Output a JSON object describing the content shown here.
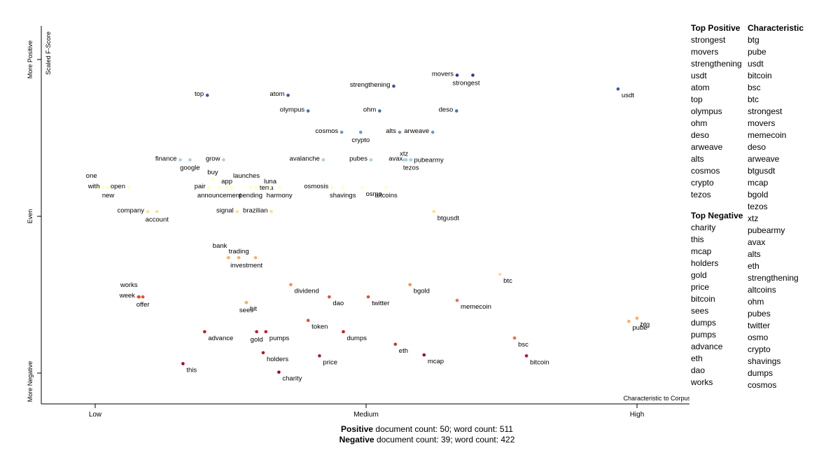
{
  "chart_data": {
    "type": "scatter",
    "x_axis": {
      "ticks": [
        {
          "label": "Low",
          "value": 0
        },
        {
          "label": "Medium",
          "value": 0.5
        },
        {
          "label": "High",
          "value": 1
        }
      ],
      "label": "Characteristic to Corpus"
    },
    "y_axis": {
      "label": "Scaled F-Score",
      "ticks": [
        {
          "label": "More Positive",
          "value": 1
        },
        {
          "label": "Even",
          "value": 0.5
        },
        {
          "label": "More Negative",
          "value": 0
        }
      ]
    },
    "color_scale": "diverging red-yellow-blue by scaled F-score",
    "points": [
      {
        "term": "movers",
        "x": 0.668,
        "y": 0.95,
        "color": "#313695",
        "label_pos": "left"
      },
      {
        "term": "strongest",
        "x": 0.697,
        "y": 0.95,
        "color": "#313695",
        "label_pos": "below-left"
      },
      {
        "term": "strengthening",
        "x": 0.551,
        "y": 0.915,
        "color": "#3a54a4",
        "label_pos": "left"
      },
      {
        "term": "usdt",
        "x": 0.965,
        "y": 0.906,
        "color": "#3b5aa8",
        "label_pos": "below-right"
      },
      {
        "term": "top",
        "x": 0.207,
        "y": 0.886,
        "color": "#3b5aa8",
        "label_pos": "left"
      },
      {
        "term": "atom",
        "x": 0.356,
        "y": 0.886,
        "color": "#3b5aa8",
        "label_pos": "left"
      },
      {
        "term": "olympus",
        "x": 0.393,
        "y": 0.836,
        "color": "#4575b4",
        "label_pos": "left"
      },
      {
        "term": "ohm",
        "x": 0.525,
        "y": 0.836,
        "color": "#4575b4",
        "label_pos": "left"
      },
      {
        "term": "deso",
        "x": 0.667,
        "y": 0.836,
        "color": "#4575b4",
        "label_pos": "left"
      },
      {
        "term": "cosmos",
        "x": 0.455,
        "y": 0.768,
        "color": "#6b98c9",
        "label_pos": "left"
      },
      {
        "term": "crypto",
        "x": 0.49,
        "y": 0.768,
        "color": "#6b98c9",
        "label_pos": "below"
      },
      {
        "term": "alts",
        "x": 0.562,
        "y": 0.768,
        "color": "#6b98c9",
        "label_pos": "left"
      },
      {
        "term": "arweave",
        "x": 0.623,
        "y": 0.768,
        "color": "#6b98c9",
        "label_pos": "left"
      },
      {
        "term": "finance",
        "x": 0.157,
        "y": 0.68,
        "color": "#abd0e6",
        "label_pos": "left"
      },
      {
        "term": "google",
        "x": 0.175,
        "y": 0.68,
        "color": "#abd0e6",
        "label_pos": "below"
      },
      {
        "term": "grow",
        "x": 0.237,
        "y": 0.68,
        "color": "#abd0e6",
        "label_pos": "left"
      },
      {
        "term": "avalanche",
        "x": 0.421,
        "y": 0.68,
        "color": "#abd0e6",
        "label_pos": "left"
      },
      {
        "term": "pubes",
        "x": 0.509,
        "y": 0.68,
        "color": "#abd0e6",
        "label_pos": "left"
      },
      {
        "term": "avax",
        "x": 0.574,
        "y": 0.68,
        "color": "#abd0e6",
        "label_pos": "left"
      },
      {
        "term": "xtz",
        "x": 0.57,
        "y": 0.68,
        "color": "#abd0e6",
        "label_pos": "above"
      },
      {
        "term": "tezos",
        "x": 0.583,
        "y": 0.68,
        "color": "#abd0e6",
        "label_pos": "below"
      },
      {
        "term": "pubearmy",
        "x": 0.582,
        "y": 0.68,
        "color": "#abd0e6",
        "label_pos": "right"
      },
      {
        "term": "buy",
        "x": 0.217,
        "y": 0.62,
        "color": "#ffffbf",
        "label_pos": "above"
      },
      {
        "term": "one",
        "x": 0.006,
        "y": 0.592,
        "color": "#ffffbf",
        "label_pos": "above-left"
      },
      {
        "term": "with",
        "x": 0.015,
        "y": 0.592,
        "color": "#ffffbf",
        "label_pos": "left"
      },
      {
        "term": "new",
        "x": 0.024,
        "y": 0.592,
        "color": "#ffffbf",
        "label_pos": "below"
      },
      {
        "term": "open",
        "x": 0.062,
        "y": 0.592,
        "color": "#ffffbf",
        "label_pos": "left"
      },
      {
        "term": "pair",
        "x": 0.21,
        "y": 0.592,
        "color": "#ffffbf",
        "label_pos": "left"
      },
      {
        "term": "announcement",
        "x": 0.229,
        "y": 0.592,
        "color": "#ffffbf",
        "label_pos": "below"
      },
      {
        "term": "app",
        "x": 0.243,
        "y": 0.592,
        "color": "#ffffbf",
        "label_pos": "above"
      },
      {
        "term": "launches",
        "x": 0.252,
        "y": 0.592,
        "color": "#ffffbf",
        "label_pos": "above-right"
      },
      {
        "term": "pending",
        "x": 0.287,
        "y": 0.592,
        "color": "#ffffbf",
        "label_pos": "below"
      },
      {
        "term": "terra",
        "x": 0.297,
        "y": 0.592,
        "color": "#ffffbf",
        "label_pos": "right"
      },
      {
        "term": "luna",
        "x": 0.323,
        "y": 0.592,
        "color": "#ffffbf",
        "label_pos": "above"
      },
      {
        "term": "harmony",
        "x": 0.34,
        "y": 0.592,
        "color": "#ffffbf",
        "label_pos": "below"
      },
      {
        "term": "osmosis",
        "x": 0.437,
        "y": 0.592,
        "color": "#ffffbf",
        "label_pos": "left"
      },
      {
        "term": "shavings",
        "x": 0.457,
        "y": 0.592,
        "color": "#ffffbf",
        "label_pos": "below"
      },
      {
        "term": "osmo",
        "x": 0.493,
        "y": 0.592,
        "color": "#ffffbf",
        "label_pos": "below-right"
      },
      {
        "term": "altcoins",
        "x": 0.537,
        "y": 0.592,
        "color": "#ffffbf",
        "label_pos": "below"
      },
      {
        "term": "company",
        "x": 0.097,
        "y": 0.515,
        "color": "#fee090",
        "label_pos": "left"
      },
      {
        "term": "account",
        "x": 0.114,
        "y": 0.515,
        "color": "#fee090",
        "label_pos": "below"
      },
      {
        "term": "signal",
        "x": 0.262,
        "y": 0.515,
        "color": "#fee090",
        "label_pos": "left"
      },
      {
        "term": "brazilian",
        "x": 0.325,
        "y": 0.515,
        "color": "#fee090",
        "label_pos": "left"
      },
      {
        "term": "btgusdt",
        "x": 0.625,
        "y": 0.515,
        "color": "#fee090",
        "label_pos": "below-right"
      },
      {
        "term": "trading",
        "x": 0.265,
        "y": 0.368,
        "color": "#fdae61",
        "label_pos": "above"
      },
      {
        "term": "bank",
        "x": 0.246,
        "y": 0.368,
        "color": "#fdae61",
        "label_pos": "above-left"
      },
      {
        "term": "investment",
        "x": 0.296,
        "y": 0.368,
        "color": "#fdae61",
        "label_pos": "below-left"
      },
      {
        "term": "btc",
        "x": 0.747,
        "y": 0.315,
        "color": "#fee090",
        "label_pos": "below-right"
      },
      {
        "term": "dividend",
        "x": 0.361,
        "y": 0.282,
        "color": "#f98e52",
        "label_pos": "below-right"
      },
      {
        "term": "bgold",
        "x": 0.581,
        "y": 0.282,
        "color": "#f98e52",
        "label_pos": "below-right"
      },
      {
        "term": "works",
        "x": 0.081,
        "y": 0.243,
        "color": "#e0512c",
        "label_pos": "above-left"
      },
      {
        "term": "week",
        "x": 0.08,
        "y": 0.243,
        "color": "#e0512c",
        "label_pos": "left"
      },
      {
        "term": "offer",
        "x": 0.088,
        "y": 0.243,
        "color": "#e0512c",
        "label_pos": "below"
      },
      {
        "term": "dao",
        "x": 0.432,
        "y": 0.243,
        "color": "#e0512c",
        "label_pos": "below-right"
      },
      {
        "term": "twitter",
        "x": 0.504,
        "y": 0.243,
        "color": "#e0512c",
        "label_pos": "below-right"
      },
      {
        "term": "memecoin",
        "x": 0.668,
        "y": 0.232,
        "color": "#f46d43",
        "label_pos": "below-right"
      },
      {
        "term": "hit",
        "x": 0.279,
        "y": 0.225,
        "color": "#fdae61",
        "label_pos": "below-right"
      },
      {
        "term": "sees",
        "x": 0.279,
        "y": 0.225,
        "color": "#fdae61",
        "label_pos": "below"
      },
      {
        "term": "btg",
        "x": 1.0,
        "y": 0.175,
        "color": "#fdae61",
        "label_pos": "below-right"
      },
      {
        "term": "pube",
        "x": 0.985,
        "y": 0.165,
        "color": "#fdae61",
        "label_pos": "below-right"
      },
      {
        "term": "token",
        "x": 0.393,
        "y": 0.168,
        "color": "#e0512c",
        "label_pos": "below-right"
      },
      {
        "term": "advance",
        "x": 0.202,
        "y": 0.132,
        "color": "#c4192b",
        "label_pos": "below-right"
      },
      {
        "term": "gold",
        "x": 0.298,
        "y": 0.132,
        "color": "#c4192b",
        "label_pos": "below"
      },
      {
        "term": "pumps",
        "x": 0.315,
        "y": 0.132,
        "color": "#c4192b",
        "label_pos": "below-right"
      },
      {
        "term": "dumps",
        "x": 0.458,
        "y": 0.132,
        "color": "#c4192b",
        "label_pos": "below-right"
      },
      {
        "term": "bsc",
        "x": 0.774,
        "y": 0.112,
        "color": "#f46d43",
        "label_pos": "below-right"
      },
      {
        "term": "eth",
        "x": 0.554,
        "y": 0.092,
        "color": "#d73027",
        "label_pos": "below-right"
      },
      {
        "term": "holders",
        "x": 0.31,
        "y": 0.065,
        "color": "#b2182b",
        "label_pos": "below-right"
      },
      {
        "term": "price",
        "x": 0.414,
        "y": 0.055,
        "color": "#b2182b",
        "label_pos": "below-right"
      },
      {
        "term": "mcap",
        "x": 0.607,
        "y": 0.058,
        "color": "#a50026",
        "label_pos": "below-right"
      },
      {
        "term": "bitcoin",
        "x": 0.796,
        "y": 0.055,
        "color": "#b2182b",
        "label_pos": "below-right"
      },
      {
        "term": "this",
        "x": 0.162,
        "y": 0.03,
        "color": "#a50026",
        "label_pos": "below-right"
      },
      {
        "term": "charity",
        "x": 0.339,
        "y": 0.003,
        "color": "#a50026",
        "label_pos": "below-right"
      }
    ]
  },
  "lists": {
    "top_positive_title": "Top Positive",
    "characteristic_title": "Characteristic",
    "top_negative_title": "Top Negative",
    "top_positive": [
      "strongest",
      "movers",
      "strengthening",
      "usdt",
      "atom",
      "top",
      "olympus",
      "ohm",
      "deso",
      "arweave",
      "alts",
      "cosmos",
      "crypto",
      "tezos"
    ],
    "top_negative": [
      "charity",
      "this",
      "mcap",
      "holders",
      "gold",
      "price",
      "bitcoin",
      "sees",
      "dumps",
      "pumps",
      "advance",
      "eth",
      "dao",
      "works"
    ],
    "characteristic": [
      "btg",
      "pube",
      "usdt",
      "bitcoin",
      "bsc",
      "btc",
      "strongest",
      "movers",
      "memecoin",
      "deso",
      "arweave",
      "btgusdt",
      "mcap",
      "bgold",
      "tezos",
      "xtz",
      "pubearmy",
      "avax",
      "alts",
      "eth",
      "strengthening",
      "altcoins",
      "ohm",
      "pubes",
      "twitter",
      "osmo",
      "crypto",
      "shavings",
      "dumps",
      "cosmos"
    ]
  },
  "footer": {
    "positive_label": "Positive",
    "positive_text": " document count: 50; word count: 511",
    "negative_label": "Negative",
    "negative_text": " document count: 39; word count: 422"
  }
}
